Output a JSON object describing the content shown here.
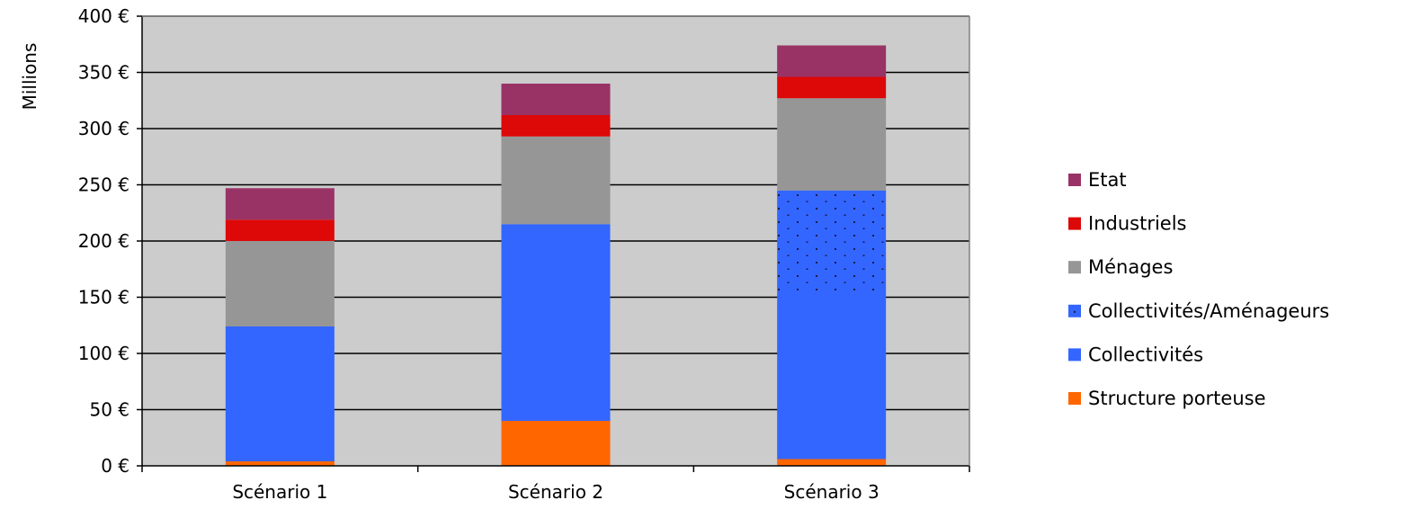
{
  "chart_data": {
    "type": "bar",
    "stacked": true,
    "ylabel": "Millions",
    "ylim": [
      0,
      400
    ],
    "y_ticks": [
      0,
      50,
      100,
      150,
      200,
      250,
      300,
      350,
      400
    ],
    "y_tick_labels": [
      "0 €",
      "50 €",
      "100 €",
      "150 €",
      "200 €",
      "250 €",
      "300 €",
      "350 €",
      "400 €"
    ],
    "categories": [
      "Scénario 1",
      "Scénario 2",
      "Scénario 3"
    ],
    "grid": true,
    "plot_background": "#cccccc",
    "legend_position": "right",
    "series": [
      {
        "name": "Structure porteuse",
        "color": "#ff6600",
        "pattern": "solid",
        "values": [
          4,
          40,
          6
        ]
      },
      {
        "name": "Collectivités",
        "color": "#3366ff",
        "pattern": "solid",
        "values": [
          120,
          175,
          150
        ]
      },
      {
        "name": "Collectivités/Aménageurs",
        "color": "#3366ff",
        "pattern": "dotted",
        "values": [
          0,
          0,
          89
        ]
      },
      {
        "name": "Ménages",
        "color": "#969696",
        "pattern": "solid",
        "values": [
          76,
          78,
          82
        ]
      },
      {
        "name": "Industriels",
        "color": "#dd0808",
        "pattern": "solid",
        "values": [
          19,
          19,
          19
        ]
      },
      {
        "name": "Etat",
        "color": "#993366",
        "pattern": "solid",
        "values": [
          28,
          28,
          28
        ]
      }
    ]
  }
}
